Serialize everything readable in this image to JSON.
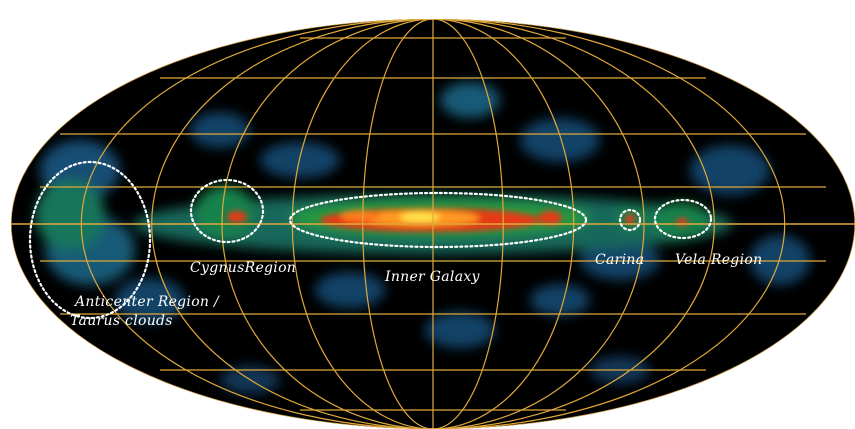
{
  "map": {
    "colors": {
      "background": "#ffffff",
      "sky": "#000000",
      "grid": "#e0a83a",
      "circle": "#ffffff",
      "label": "#ffffff"
    },
    "labels": {
      "anticenter_line1": "Anticenter Region /",
      "anticenter_line2": "Taurus clouds",
      "cygnus": "CygnusRegion",
      "inner_galaxy": "Inner Galaxy",
      "carina": "Carina",
      "vela": "Vela Region"
    }
  }
}
